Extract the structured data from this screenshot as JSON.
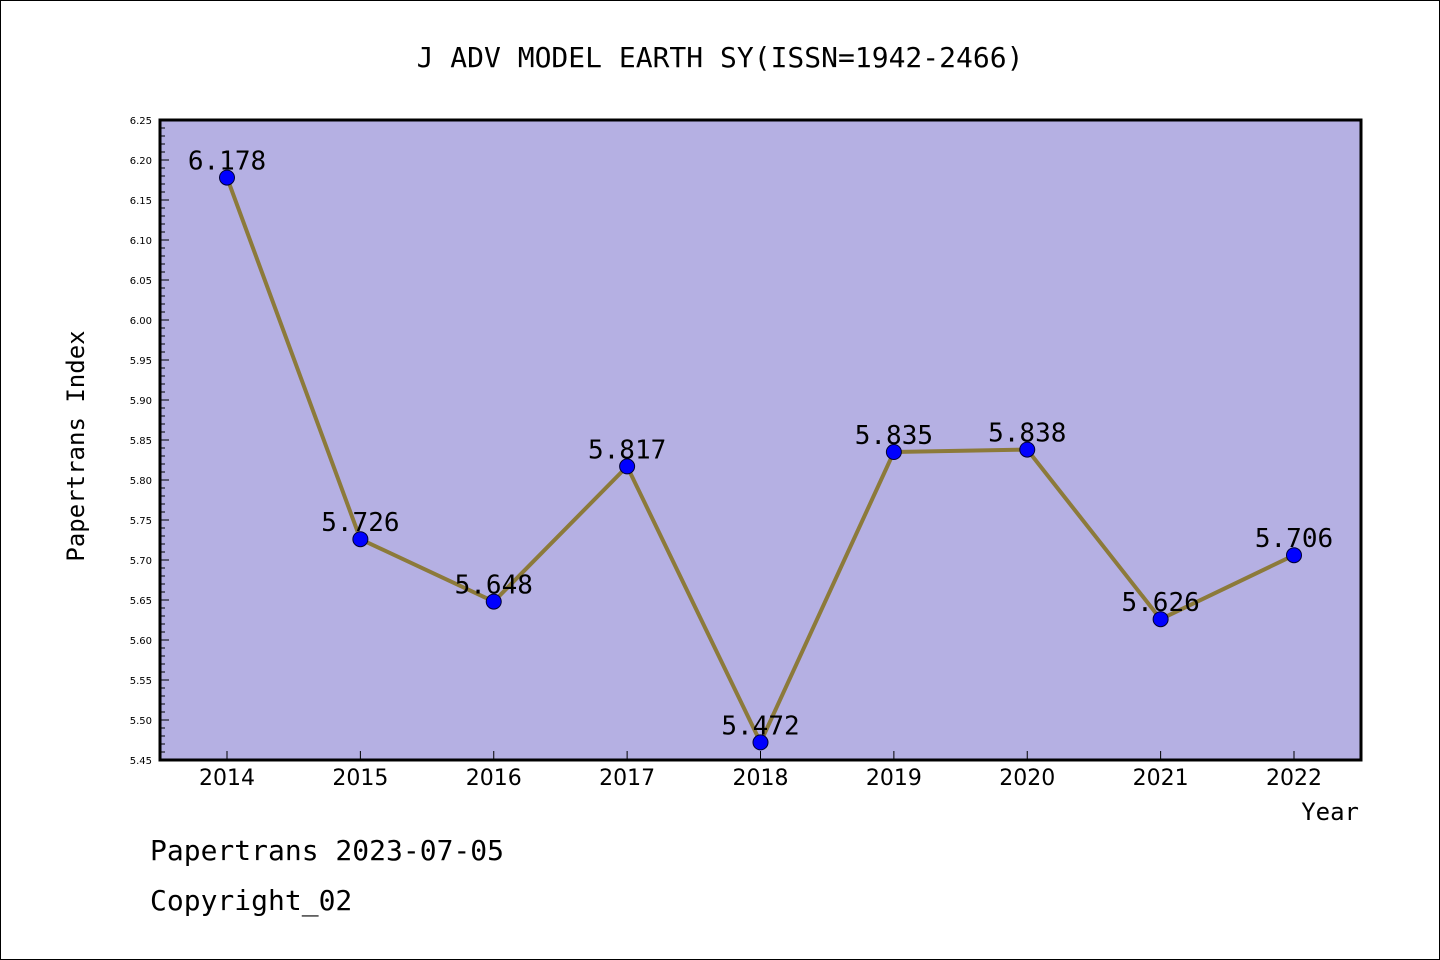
{
  "chart_data": {
    "type": "line",
    "title": "J ADV MODEL EARTH SY(ISSN=1942-2466)",
    "xlabel": "Year",
    "ylabel": "Papertrans Index",
    "categories": [
      "2014",
      "2015",
      "2016",
      "2017",
      "2018",
      "2019",
      "2020",
      "2021",
      "2022"
    ],
    "values": [
      6.178,
      5.726,
      5.648,
      5.817,
      5.472,
      5.835,
      5.838,
      5.626,
      5.706
    ],
    "data_labels": [
      "6.178",
      "5.726",
      "5.648",
      "5.817",
      "5.472",
      "5.835",
      "5.838",
      "5.626",
      "5.706"
    ],
    "ylim": [
      5.45,
      6.25
    ],
    "yticks": [
      "5.45",
      "5.50",
      "5.55",
      "5.60",
      "5.65",
      "5.70",
      "5.75",
      "5.80",
      "5.85",
      "5.90",
      "5.95",
      "6.00",
      "6.05",
      "6.10",
      "6.15",
      "6.20",
      "6.25"
    ],
    "grid": false,
    "legend": "none",
    "colors": {
      "plot_background": "#b5b0e3",
      "line": "#8c7a3a",
      "marker": "#0000ff"
    }
  },
  "footer": {
    "date_text": "Papertrans 2023-07-05",
    "copyright_text": "Copyright_02"
  }
}
